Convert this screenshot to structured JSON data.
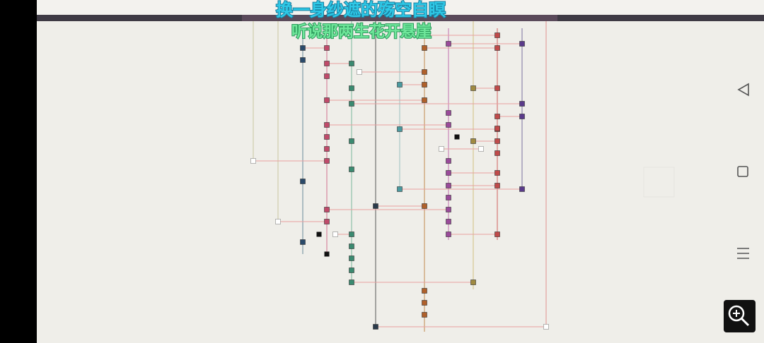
{
  "overlay": {
    "lyric_top": "换一身纱遮的殇空自瞑",
    "lyric_bottom": "听说那两生花开悬崖"
  }
}
